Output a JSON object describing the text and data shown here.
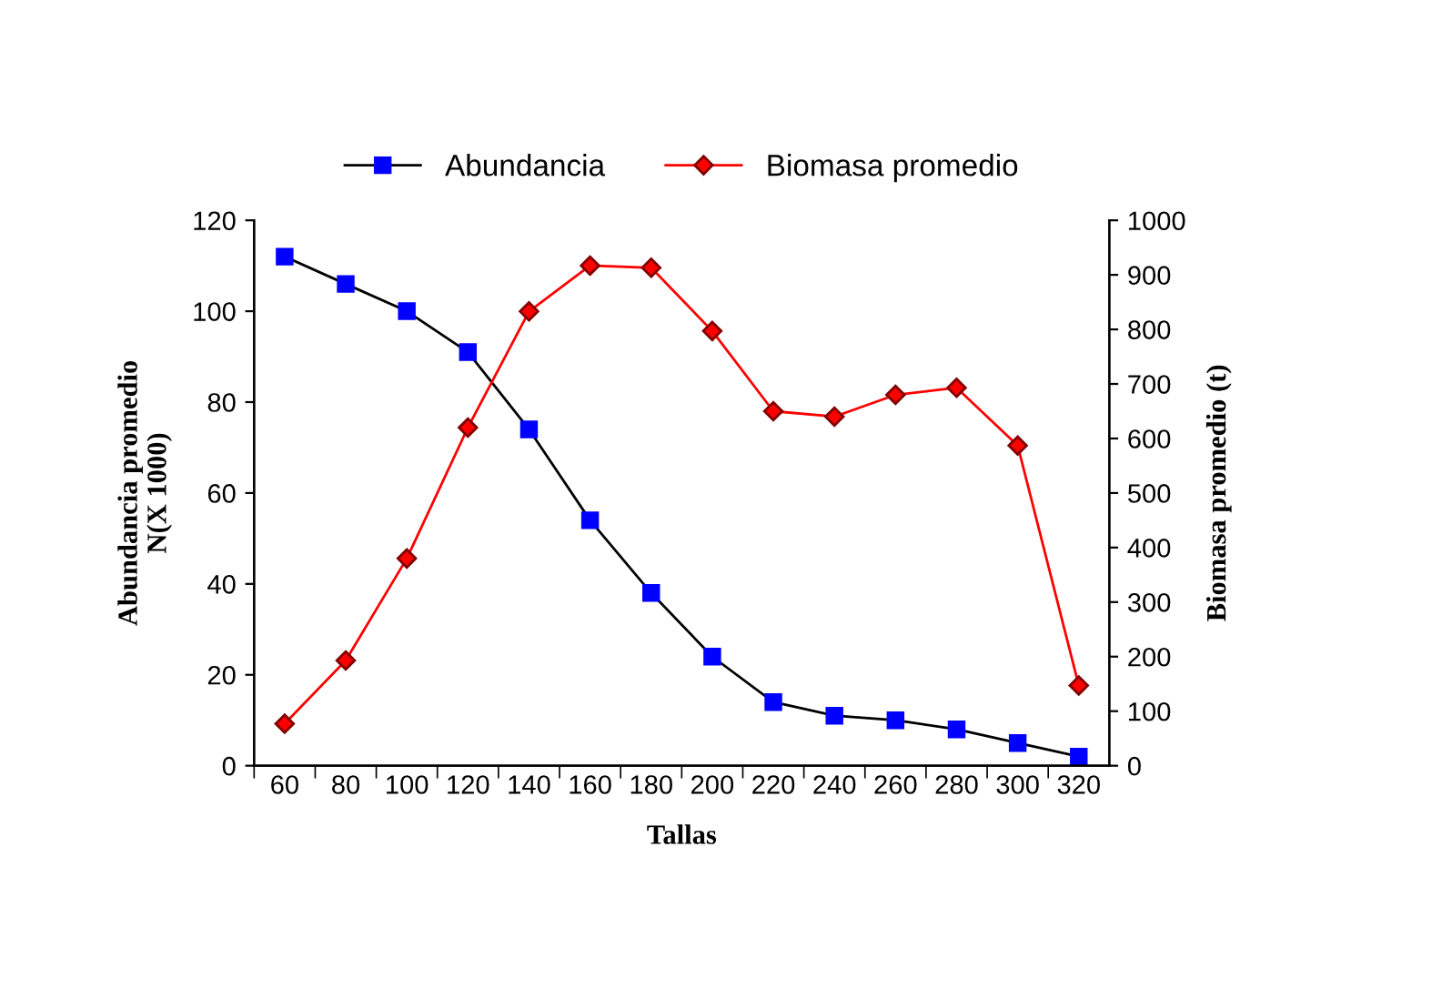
{
  "chart_data": {
    "type": "line",
    "xlabel": "Tallas",
    "ylabel": "Abundancia promedio\nN(X 1000)",
    "y2label": "Biomasa promedio (t)",
    "categories": [
      "60",
      "80",
      "100",
      "120",
      "140",
      "160",
      "180",
      "200",
      "220",
      "240",
      "260",
      "280",
      "300",
      "320"
    ],
    "series": [
      {
        "name": "Abundancia",
        "color": "#0000ff",
        "marker": "square",
        "values": [
          112,
          106,
          100,
          91,
          74,
          54,
          38,
          24,
          14,
          11,
          10,
          8,
          5,
          2
        ]
      },
      {
        "name": "Biomasa promedio",
        "color": "#ff0000",
        "marker": "diamond",
        "axis": "y2",
        "values": [
          77,
          193,
          380,
          620,
          833,
          917,
          913,
          797,
          650,
          640,
          680,
          693,
          587,
          147
        ]
      }
    ],
    "ylim": [
      0,
      120
    ],
    "yticks": [
      0,
      20,
      40,
      60,
      80,
      100,
      120
    ],
    "y2lim": [
      0,
      1000
    ],
    "y2ticks": [
      0,
      100,
      200,
      300,
      400,
      500,
      600,
      700,
      800,
      900,
      1000
    ],
    "grid": false,
    "legend": "top",
    "line_style": "solid"
  }
}
